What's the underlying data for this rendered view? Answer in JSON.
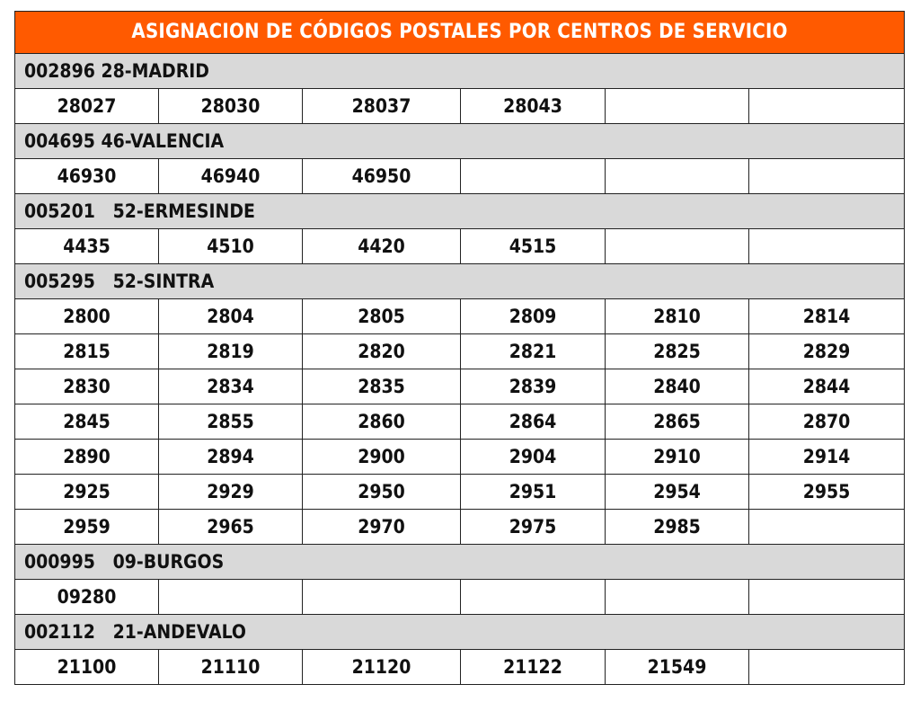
{
  "title": "ASIGNACION DE CÓDIGOS POSTALES POR CENTROS DE SERVICIO",
  "columns": 6,
  "colors": {
    "header_background": "#ff5a00",
    "header_text": "#ffffff",
    "group_background": "#d9d9d9"
  },
  "groups": [
    {
      "label": "002896 28-MADRID",
      "rows": [
        [
          "28027",
          "28030",
          "28037",
          "28043",
          "",
          ""
        ]
      ]
    },
    {
      "label": "004695 46-VALENCIA",
      "rows": [
        [
          "46930",
          "46940",
          "46950",
          "",
          "",
          ""
        ]
      ]
    },
    {
      "label": "005201   52-ERMESINDE",
      "rows": [
        [
          "4435",
          "4510",
          "4420",
          "4515",
          "",
          ""
        ]
      ]
    },
    {
      "label": "005295   52-SINTRA",
      "rows": [
        [
          "2800",
          "2804",
          "2805",
          "2809",
          "2810",
          "2814"
        ],
        [
          "2815",
          "2819",
          "2820",
          "2821",
          "2825",
          "2829"
        ],
        [
          "2830",
          "2834",
          "2835",
          "2839",
          "2840",
          "2844"
        ],
        [
          "2845",
          "2855",
          "2860",
          "2864",
          "2865",
          "2870"
        ],
        [
          "2890",
          "2894",
          "2900",
          "2904",
          "2910",
          "2914"
        ],
        [
          "2925",
          "2929",
          "2950",
          "2951",
          "2954",
          "2955"
        ],
        [
          "2959",
          "2965",
          "2970",
          "2975",
          "2985",
          ""
        ]
      ]
    },
    {
      "label": "000995   09-BURGOS",
      "rows": [
        [
          "09280",
          "",
          "",
          "",
          "",
          ""
        ]
      ]
    },
    {
      "label": "002112   21-ANDEVALO",
      "rows": [
        [
          "21100",
          "21110",
          "21120",
          "21122",
          "21549",
          ""
        ]
      ]
    }
  ]
}
